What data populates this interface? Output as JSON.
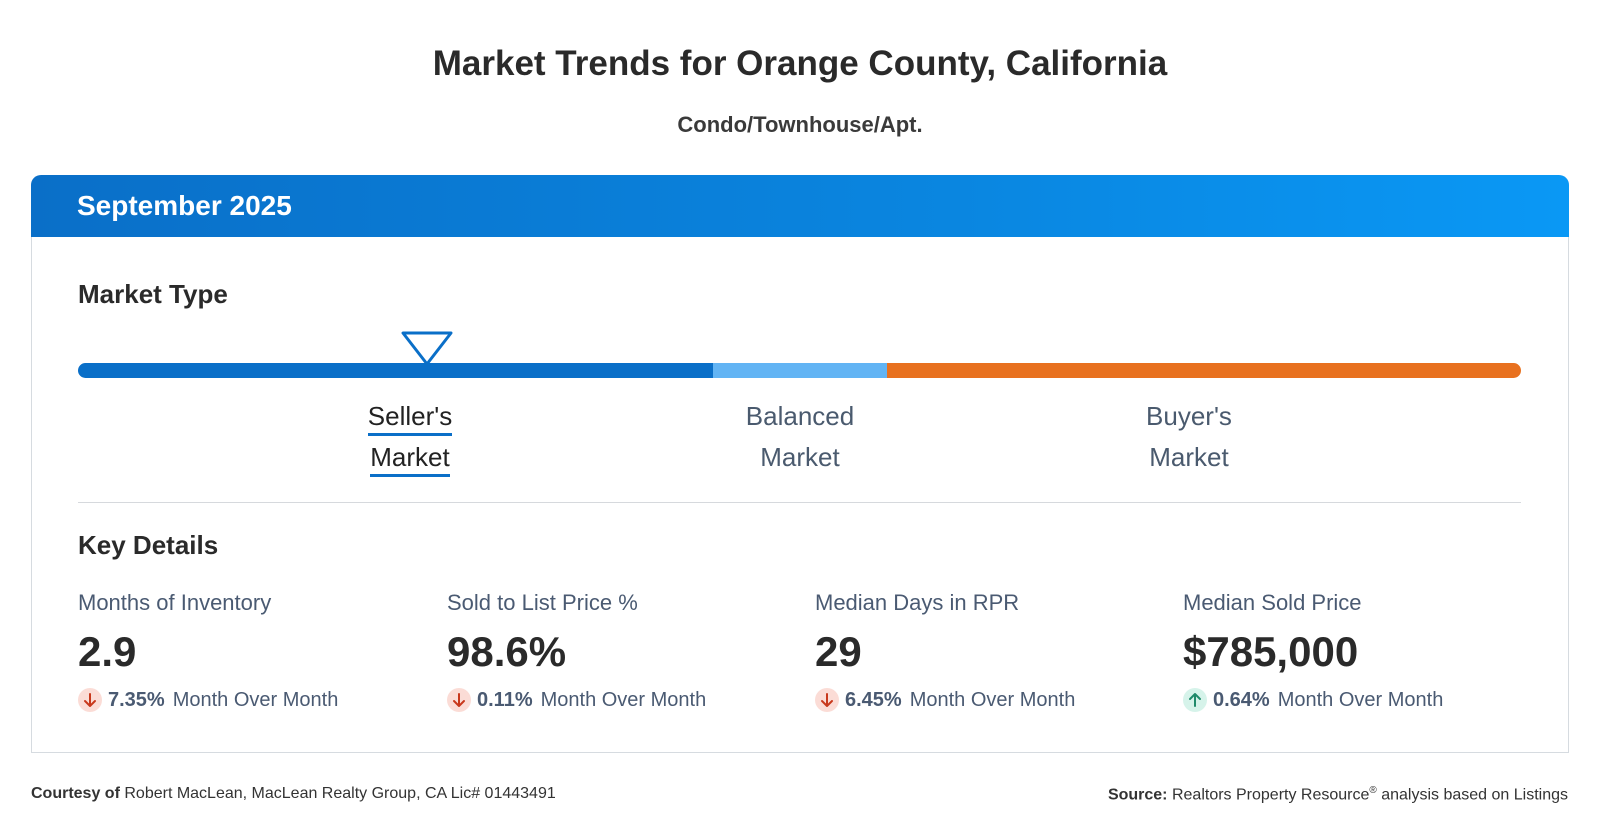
{
  "header": {
    "title": "Market Trends for Orange County, California",
    "subtitle": "Condo/Townhouse/Apt."
  },
  "card": {
    "period": "September 2025",
    "market_type": {
      "heading": "Market Type",
      "selected": 0,
      "options": [
        "Seller's Market",
        "Balanced Market",
        "Buyer's Market"
      ]
    },
    "key_details": {
      "heading": "Key Details",
      "metrics": [
        {
          "label": "Months of Inventory",
          "value": "2.9",
          "change": "7.35%",
          "direction": "down",
          "change_label": "Month Over Month"
        },
        {
          "label": "Sold to List Price %",
          "value": "98.6%",
          "change": "0.11%",
          "direction": "down",
          "change_label": "Month Over Month"
        },
        {
          "label": "Median Days in RPR",
          "value": "29",
          "change": "6.45%",
          "direction": "down",
          "change_label": "Month Over Month"
        },
        {
          "label": "Median Sold Price",
          "value": "$785,000",
          "change": "0.64%",
          "direction": "up",
          "change_label": "Month Over Month"
        }
      ]
    }
  },
  "footer": {
    "courtesy_label": "Courtesy of",
    "courtesy_text": "Robert MacLean, MacLean Realty Group, CA Lic# 01443491",
    "source_label": "Source:",
    "source_text": "Realtors Property Resource",
    "source_sup": "®",
    "source_rest": "analysis based on Listings"
  }
}
